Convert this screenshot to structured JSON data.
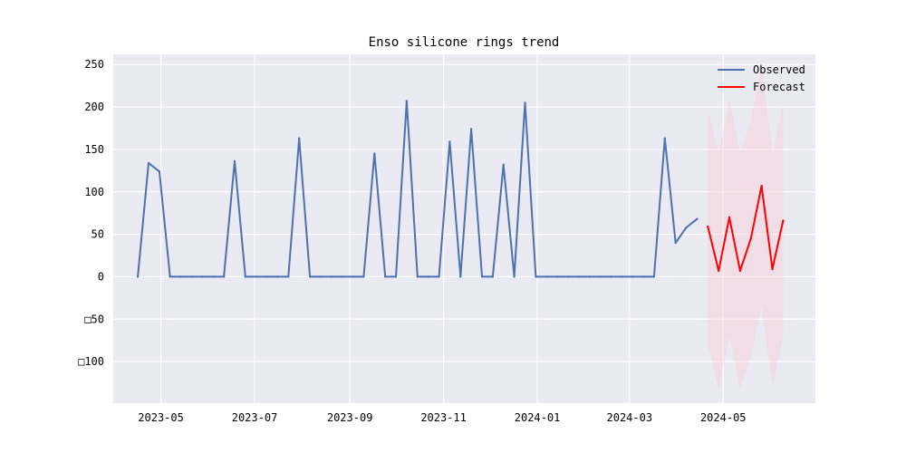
{
  "chart_data": {
    "type": "line",
    "title": "Enso silicone rings trend",
    "xlabel": "",
    "ylabel": "",
    "x_tick_labels": [
      "2023-05",
      "2023-07",
      "2023-09",
      "2023-11",
      "2024-01",
      "2024-03",
      "2024-05"
    ],
    "x_tick_dates": [
      "2023-05-01",
      "2023-07-01",
      "2023-09-01",
      "2023-11-01",
      "2024-01-01",
      "2024-03-01",
      "2024-05-01"
    ],
    "xlim": [
      "2023-03-31",
      "2024-06-30"
    ],
    "y_tick_labels": [
      "250",
      "200",
      "150",
      "100",
      "50",
      "0",
      "□50",
      "□100"
    ],
    "y_tick_values": [
      250,
      200,
      150,
      100,
      50,
      0,
      -50,
      -100
    ],
    "ylim": [
      -149,
      262
    ],
    "grid": true,
    "legend_position": "top-right",
    "series": [
      {
        "name": "Observed",
        "color": "#4c72b0",
        "x": [
          "2023-04-16",
          "2023-04-23",
          "2023-04-30",
          "2023-05-07",
          "2023-05-14",
          "2023-05-21",
          "2023-05-28",
          "2023-06-04",
          "2023-06-11",
          "2023-06-18",
          "2023-06-25",
          "2023-07-02",
          "2023-07-09",
          "2023-07-16",
          "2023-07-23",
          "2023-07-30",
          "2023-08-06",
          "2023-08-13",
          "2023-08-20",
          "2023-08-27",
          "2023-09-03",
          "2023-09-10",
          "2023-09-17",
          "2023-09-24",
          "2023-10-01",
          "2023-10-08",
          "2023-10-15",
          "2023-10-22",
          "2023-10-29",
          "2023-11-05",
          "2023-11-12",
          "2023-11-19",
          "2023-11-26",
          "2023-12-03",
          "2023-12-10",
          "2023-12-17",
          "2023-12-24",
          "2023-12-31",
          "2024-01-07",
          "2024-01-14",
          "2024-01-21",
          "2024-01-28",
          "2024-02-04",
          "2024-02-11",
          "2024-02-18",
          "2024-02-25",
          "2024-03-03",
          "2024-03-10",
          "2024-03-17",
          "2024-03-24",
          "2024-03-31",
          "2024-04-07",
          "2024-04-14"
        ],
        "values": [
          0,
          134,
          124,
          0,
          0,
          0,
          0,
          0,
          0,
          136,
          0,
          0,
          0,
          0,
          0,
          163,
          0,
          0,
          0,
          0,
          0,
          0,
          145,
          0,
          0,
          207,
          0,
          0,
          0,
          159,
          0,
          174,
          0,
          0,
          132,
          0,
          205,
          0,
          0,
          0,
          0,
          0,
          0,
          0,
          0,
          0,
          0,
          0,
          0,
          163,
          40,
          58,
          68
        ]
      },
      {
        "name": "Forecast",
        "color": "#ff0000",
        "x": [
          "2024-04-21",
          "2024-04-28",
          "2024-05-05",
          "2024-05-12",
          "2024-05-19",
          "2024-05-26",
          "2024-06-02",
          "2024-06-09"
        ],
        "values": [
          59,
          7,
          70,
          7,
          45,
          107,
          9,
          66
        ],
        "interval_lower": [
          -78,
          -133,
          -70,
          -132,
          -94,
          -35,
          -128,
          -72
        ],
        "interval_upper": [
          196,
          146,
          209,
          146,
          184,
          249,
          146,
          204
        ],
        "interval_color": "#ffc0cb"
      }
    ]
  },
  "colors": {
    "plot_background": "#eaeaf2",
    "grid": "#ffffff",
    "observed": "#4c72b0",
    "forecast": "#ff0000",
    "interval_fill": "#ffc0cb"
  }
}
